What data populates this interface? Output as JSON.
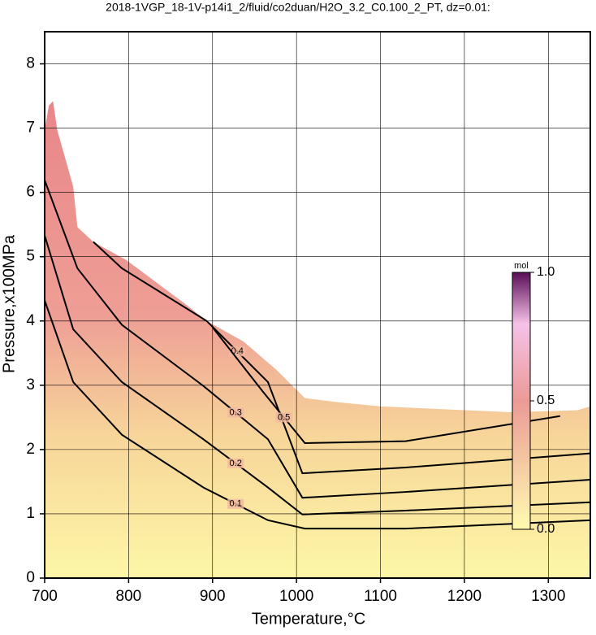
{
  "chart_data": {
    "type": "contour",
    "title": "2018-1VGP_18-1V-p14i1_2/fluid/co2duan/H2O_3.2_C0.100_2_PT, dz=0.01:",
    "x_label": "Temperature,°C",
    "y_label": "Pressure,x100MPa",
    "xlim": [
      700,
      1350
    ],
    "ylim": [
      0,
      8.5
    ],
    "xticks": [
      700,
      800,
      900,
      1000,
      1100,
      1200,
      1300
    ],
    "yticks": [
      0,
      1,
      2,
      3,
      4,
      5,
      6,
      7,
      8
    ],
    "grid": true,
    "boundary": {
      "x": [
        700,
        705,
        710,
        715,
        734,
        739,
        758,
        797,
        869,
        893,
        937,
        976,
        1010,
        1053,
        1101,
        1255,
        1334,
        1350
      ],
      "y": [
        6.97,
        7.35,
        7.42,
        6.97,
        6.09,
        5.46,
        5.23,
        4.95,
        4.25,
        4.0,
        3.68,
        3.24,
        2.8,
        2.73,
        2.67,
        2.58,
        2.61,
        2.67
      ]
    },
    "series": [
      {
        "name": "0.1",
        "color": "#000000",
        "x": [
          700,
          734,
          792,
          889,
          966,
          1010,
          1130,
          1350
        ],
        "y": [
          4.32,
          3.05,
          2.23,
          1.41,
          0.9,
          0.77,
          0.77,
          0.9
        ]
      },
      {
        "name": "0.2",
        "color": "#000000",
        "x": [
          700,
          734,
          792,
          889,
          966,
          1007,
          1130,
          1350
        ],
        "y": [
          5.33,
          3.87,
          3.05,
          2.16,
          1.41,
          0.99,
          1.05,
          1.18
        ]
      },
      {
        "name": "0.3",
        "color": "#000000",
        "x": [
          700,
          739,
          792,
          889,
          966,
          1007,
          1130,
          1350
        ],
        "y": [
          6.19,
          4.82,
          3.94,
          2.99,
          2.16,
          1.25,
          1.34,
          1.53
        ]
      },
      {
        "name": "0.4",
        "color": "#000000",
        "x": [
          758,
          792,
          893,
          966,
          1007,
          1130,
          1350
        ],
        "y": [
          5.23,
          4.82,
          4.0,
          3.05,
          1.63,
          1.72,
          1.94
        ]
      },
      {
        "name": "0.5",
        "color": "#000000",
        "x": [
          900,
          960,
          1010,
          1130,
          1314
        ],
        "y": [
          3.9,
          2.9,
          2.1,
          2.13,
          2.52
        ]
      }
    ],
    "colorbar": {
      "label": "mol",
      "range": [
        0,
        1
      ],
      "ticks": [
        {
          "value": 0,
          "label": "0.0"
        },
        {
          "value": 0.5,
          "label": "0.5"
        },
        {
          "value": 1,
          "label": "1.0"
        }
      ]
    }
  }
}
